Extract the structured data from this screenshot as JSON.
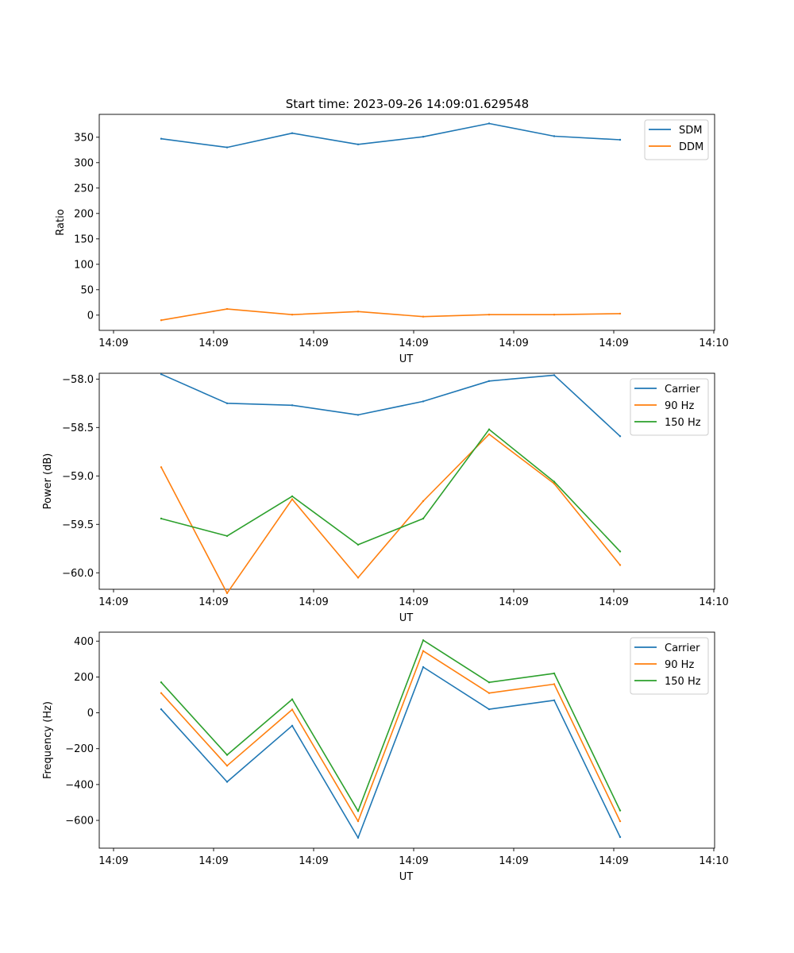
{
  "figure": {
    "title": "Start time: 2023-09-26 14:09:01.629548"
  },
  "chart_data": [
    {
      "type": "line",
      "title": "Start time: 2023-09-26 14:09:01.629548",
      "xlabel": "UT",
      "ylabel": "Ratio",
      "x_tick_labels": [
        "14:09",
        "14:09",
        "14:09",
        "14:09",
        "14:09",
        "14:09",
        "14:10"
      ],
      "y_ticks": [
        0,
        50,
        100,
        150,
        200,
        250,
        300,
        350
      ],
      "ylim": [
        -30,
        395
      ],
      "legend": "top-right",
      "series": [
        {
          "name": "SDM",
          "color": "#1f77b4",
          "values": [
            347,
            330,
            358,
            336,
            351,
            377,
            352,
            345
          ]
        },
        {
          "name": "DDM",
          "color": "#ff7f0e",
          "values": [
            -10,
            12,
            1,
            7,
            -3,
            1,
            1,
            3
          ]
        }
      ]
    },
    {
      "type": "line",
      "title": "",
      "xlabel": "UT",
      "ylabel": "Power (dB)",
      "x_tick_labels": [
        "14:09",
        "14:09",
        "14:09",
        "14:09",
        "14:09",
        "14:09",
        "14:10"
      ],
      "y_ticks": [
        -60.0,
        -59.5,
        -59.0,
        -58.5,
        -58.0
      ],
      "y_tick_labels": [
        "−60.0",
        "−59.5",
        "−59.0",
        "−58.5",
        "−58.0"
      ],
      "ylim": [
        -60.17,
        -57.94
      ],
      "legend": "top-right",
      "series": [
        {
          "name": "Carrier",
          "color": "#1f77b4",
          "values": [
            -57.95,
            -58.25,
            -58.27,
            -58.37,
            -58.23,
            -58.02,
            -57.96,
            -58.59
          ]
        },
        {
          "name": "90 Hz",
          "color": "#ff7f0e",
          "values": [
            -58.91,
            -60.21,
            -59.24,
            -60.05,
            -59.26,
            -58.57,
            -59.08,
            -59.92
          ]
        },
        {
          "name": "150 Hz",
          "color": "#2ca02c",
          "values": [
            -59.44,
            -59.62,
            -59.21,
            -59.71,
            -59.44,
            -58.52,
            -59.06,
            -59.78
          ]
        }
      ]
    },
    {
      "type": "line",
      "title": "",
      "xlabel": "UT",
      "ylabel": "Frequency (Hz)",
      "x_tick_labels": [
        "14:09",
        "14:09",
        "14:09",
        "14:09",
        "14:09",
        "14:09",
        "14:10"
      ],
      "y_ticks": [
        -600,
        -400,
        -200,
        0,
        200,
        400
      ],
      "y_tick_labels": [
        "−600",
        "−400",
        "−200",
        "0",
        "200",
        "400"
      ],
      "ylim": [
        -755,
        450
      ],
      "legend": "top-right",
      "series": [
        {
          "name": "Carrier",
          "color": "#1f77b4",
          "values": [
            20,
            -385,
            -72,
            -697,
            255,
            20,
            70,
            -693
          ]
        },
        {
          "name": "90 Hz",
          "color": "#ff7f0e",
          "values": [
            110,
            -295,
            18,
            -605,
            345,
            110,
            160,
            -605
          ]
        },
        {
          "name": "150 Hz",
          "color": "#2ca02c",
          "values": [
            170,
            -235,
            75,
            -548,
            405,
            170,
            220,
            -545
          ]
        }
      ]
    }
  ]
}
